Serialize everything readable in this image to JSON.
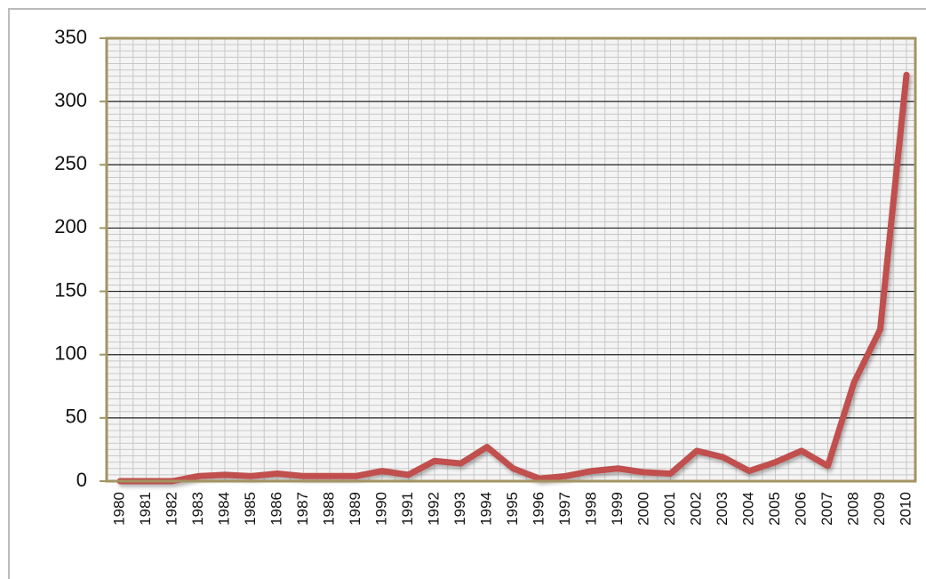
{
  "chart_data": {
    "type": "line",
    "categories": [
      "1980",
      "1981",
      "1982",
      "1983",
      "1984",
      "1985",
      "1986",
      "1987",
      "1988",
      "1989",
      "1990",
      "1991",
      "1992",
      "1993",
      "1994",
      "1995",
      "1996",
      "1997",
      "1998",
      "1999",
      "2000",
      "2001",
      "2002",
      "2003",
      "2004",
      "2005",
      "2006",
      "2007",
      "2008",
      "2009",
      "2010"
    ],
    "series": [
      {
        "name": null,
        "color": "#c0504d",
        "values": [
          0,
          0,
          0,
          4,
          5,
          4,
          6,
          4,
          4,
          4,
          8,
          5,
          16,
          14,
          27,
          10,
          2,
          4,
          8,
          10,
          7,
          6,
          24,
          19,
          8,
          15,
          24,
          12,
          78,
          120,
          321
        ]
      }
    ],
    "ylim": [
      0,
      350
    ],
    "yticks": [
      0,
      50,
      100,
      150,
      200,
      250,
      300,
      350
    ],
    "grid": true
  }
}
